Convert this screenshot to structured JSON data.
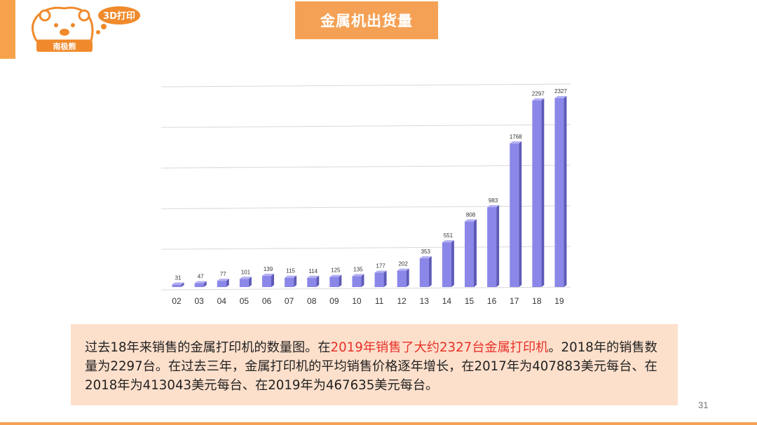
{
  "header": {
    "title": "金属机出货量",
    "logo_badge": "3D打印",
    "logo_text": "南极熊"
  },
  "chart_data": {
    "type": "bar",
    "categories": [
      "02",
      "03",
      "04",
      "05",
      "06",
      "07",
      "08",
      "09",
      "10",
      "11",
      "12",
      "13",
      "14",
      "15",
      "16",
      "17",
      "18",
      "19"
    ],
    "values": [
      31,
      47,
      77,
      101,
      139,
      115,
      114,
      125,
      135,
      177,
      202,
      353,
      551,
      808,
      983,
      1768,
      2297,
      2327
    ],
    "title": "",
    "xlabel": "",
    "ylabel": "",
    "ylim": [
      0,
      2500
    ],
    "grid": true,
    "bar_color": "#8b87e8"
  },
  "description": {
    "part1": "过去18年来销售的金属打印机的数量图。在",
    "highlight": "2019年销售了大约2327台金属打印机",
    "part2": "。2018年的销售数量为2297台。在过去三年，金属打印机的平均销售价格逐年增长，在2017年为407883美元每台、在2018年为413043美元每台、在2019年为467635美元每台。",
    "highlight_color": "#e8322a"
  },
  "footer": {
    "page_number": "31"
  }
}
